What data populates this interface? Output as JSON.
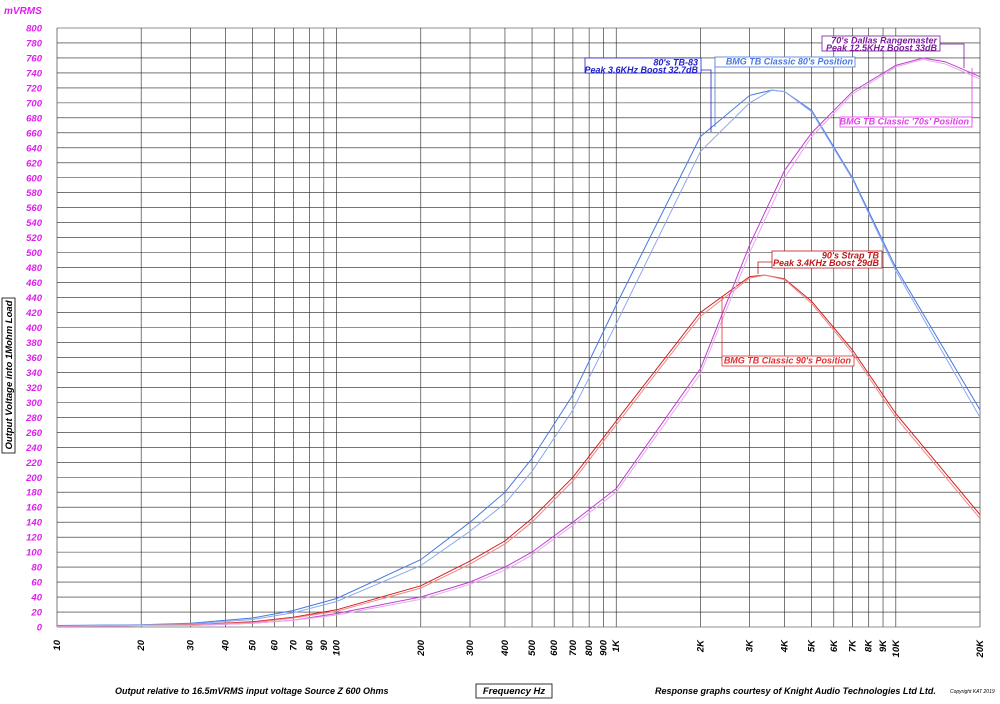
{
  "chart_data": {
    "type": "line",
    "x_scale": "log",
    "xlim": [
      10,
      20000
    ],
    "ylim": [
      0,
      800
    ],
    "grid": true,
    "y_unit": "mVRMS",
    "ylabel": "Output Voltage into 1Mohm Load",
    "xlabel": "Frequency Hz",
    "y_ticks": [
      0,
      20,
      40,
      60,
      80,
      100,
      120,
      140,
      160,
      180,
      200,
      220,
      240,
      260,
      280,
      300,
      320,
      340,
      360,
      380,
      400,
      420,
      440,
      460,
      480,
      500,
      520,
      540,
      560,
      580,
      600,
      620,
      640,
      660,
      680,
      700,
      720,
      740,
      760,
      780,
      800
    ],
    "x_grid": [
      10,
      20,
      30,
      40,
      50,
      60,
      70,
      80,
      90,
      100,
      200,
      300,
      400,
      500,
      600,
      700,
      800,
      900,
      1000,
      2000,
      3000,
      4000,
      5000,
      6000,
      7000,
      8000,
      9000,
      10000,
      20000
    ],
    "x_tick_labels": [
      {
        "v": 10,
        "t": "10"
      },
      {
        "v": 20,
        "t": "20"
      },
      {
        "v": 30,
        "t": "30"
      },
      {
        "v": 40,
        "t": "40"
      },
      {
        "v": 50,
        "t": "50"
      },
      {
        "v": 60,
        "t": "60"
      },
      {
        "v": 70,
        "t": "70"
      },
      {
        "v": 80,
        "t": "80"
      },
      {
        "v": 90,
        "t": "90"
      },
      {
        "v": 100,
        "t": "100"
      },
      {
        "v": 200,
        "t": "200"
      },
      {
        "v": 300,
        "t": "300"
      },
      {
        "v": 400,
        "t": "400"
      },
      {
        "v": 500,
        "t": "500"
      },
      {
        "v": 600,
        "t": "600"
      },
      {
        "v": 700,
        "t": "700"
      },
      {
        "v": 800,
        "t": "800"
      },
      {
        "v": 900,
        "t": "900"
      },
      {
        "v": 1000,
        "t": "1K"
      },
      {
        "v": 2000,
        "t": "2K"
      },
      {
        "v": 3000,
        "t": "3K"
      },
      {
        "v": 4000,
        "t": "4K"
      },
      {
        "v": 5000,
        "t": "5K"
      },
      {
        "v": 6000,
        "t": "6K"
      },
      {
        "v": 7000,
        "t": "7K"
      },
      {
        "v": 8000,
        "t": "8K"
      },
      {
        "v": 9000,
        "t": "9K"
      },
      {
        "v": 10000,
        "t": "10K"
      },
      {
        "v": 20000,
        "t": "20K"
      }
    ],
    "series": [
      {
        "color": "#4a78e0",
        "x": [
          10,
          20,
          30,
          50,
          70,
          100,
          200,
          300,
          400,
          500,
          700,
          1000,
          2000,
          3000,
          3600,
          4000,
          5000,
          7000,
          10000,
          20000
        ],
        "y": [
          2,
          3,
          5,
          12,
          22,
          38,
          90,
          140,
          180,
          225,
          310,
          430,
          655,
          710,
          717,
          715,
          690,
          600,
          480,
          290
        ]
      },
      {
        "color": "#8aa8f0",
        "x": [
          10,
          20,
          30,
          50,
          70,
          100,
          200,
          300,
          400,
          500,
          700,
          1000,
          2000,
          3000,
          3600,
          4000,
          5000,
          7000,
          10000,
          20000
        ],
        "y": [
          1,
          3,
          4,
          10,
          19,
          34,
          82,
          128,
          165,
          208,
          290,
          405,
          635,
          700,
          717,
          715,
          688,
          598,
          476,
          280
        ]
      },
      {
        "color": "#d42020",
        "x": [
          10,
          20,
          30,
          50,
          70,
          100,
          200,
          300,
          400,
          500,
          700,
          1000,
          2000,
          3000,
          3400,
          4000,
          5000,
          7000,
          10000,
          20000
        ],
        "y": [
          1,
          2,
          3,
          7,
          13,
          23,
          55,
          88,
          115,
          145,
          200,
          275,
          420,
          468,
          470,
          465,
          435,
          370,
          285,
          150
        ]
      },
      {
        "color": "#ee8888",
        "x": [
          10,
          20,
          30,
          50,
          70,
          100,
          200,
          300,
          400,
          500,
          700,
          1000,
          2000,
          3000,
          3400,
          4000,
          5000,
          7000,
          10000,
          20000
        ],
        "y": [
          1,
          2,
          3,
          6,
          12,
          21,
          52,
          84,
          111,
          140,
          195,
          270,
          415,
          466,
          470,
          464,
          432,
          366,
          280,
          145
        ]
      },
      {
        "color": "#c040d0",
        "x": [
          10,
          20,
          30,
          50,
          70,
          100,
          200,
          300,
          400,
          500,
          700,
          1000,
          2000,
          3000,
          4000,
          5000,
          7000,
          10000,
          12500,
          15000,
          20000
        ],
        "y": [
          1,
          2,
          2,
          5,
          9,
          18,
          40,
          60,
          80,
          100,
          140,
          185,
          345,
          510,
          610,
          660,
          715,
          750,
          760,
          755,
          735
        ]
      },
      {
        "color": "#e8a8ee",
        "x": [
          10,
          20,
          30,
          50,
          70,
          100,
          200,
          300,
          400,
          500,
          700,
          1000,
          2000,
          3000,
          4000,
          5000,
          7000,
          10000,
          12500,
          15000,
          20000
        ],
        "y": [
          1,
          2,
          2,
          5,
          9,
          16,
          37,
          57,
          76,
          96,
          136,
          180,
          338,
          500,
          600,
          655,
          712,
          748,
          758,
          752,
          732
        ]
      }
    ],
    "annotations": [
      {
        "color": "#2020c8",
        "lines": [
          "80's TB-83",
          "Peak 3.6KHz Boost 32.7dB"
        ]
      },
      {
        "color": "#4a78e0",
        "lines": [
          "BMG TB Classic 80's Position"
        ]
      },
      {
        "color": "#7a1a9a",
        "lines": [
          "70's Dallas Rangemaster",
          "Peak 12.5KHz Boost 33dB"
        ]
      },
      {
        "color": "#e040e8",
        "lines": [
          "BMG TB Classic '70s' Position"
        ]
      },
      {
        "color": "#c01818",
        "lines": [
          "90's Strap TB",
          "Peak 3.4KHz Boost 29dB"
        ]
      },
      {
        "color": "#e03030",
        "lines": [
          "BMG TB Classic 90's Position"
        ]
      }
    ]
  },
  "footer": {
    "left": "Output relative to 16.5mVRMS input voltage Source Z 600 Ohms",
    "right": "Response graphs courtesy of Knight Audio Technologies Ltd Ltd.",
    "copyright": "Copyright KAT 2019"
  }
}
